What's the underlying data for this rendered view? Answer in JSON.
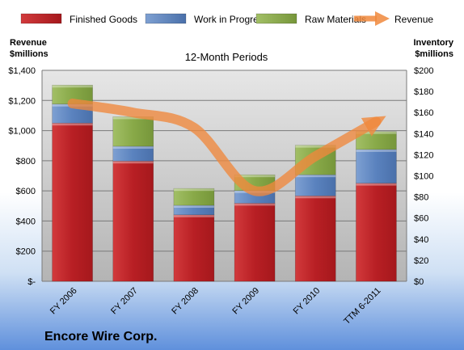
{
  "chart_data": {
    "type": "bar",
    "title": "12-Month Periods",
    "company": "Encore Wire Corp.",
    "categories": [
      "FY 2006",
      "FY 2007",
      "FY 2008",
      "FY 2009",
      "FY 2010",
      "TTM 6-2011"
    ],
    "stacked": true,
    "series": [
      {
        "name": "Finished Goods",
        "color": "#c0282c",
        "axis": "right",
        "values": [
          150,
          114,
          63,
          74,
          81,
          93
        ]
      },
      {
        "name": "Work in Progress",
        "color": "#5c84c0",
        "axis": "right",
        "values": [
          18,
          14,
          9,
          12,
          20,
          32
        ]
      },
      {
        "name": "Raw Materials",
        "color": "#8cae4c",
        "axis": "right",
        "values": [
          18,
          28,
          16,
          15,
          28,
          17
        ]
      },
      {
        "name": "Revenue",
        "type": "line",
        "color": "#f0883c",
        "axis": "left",
        "values": [
          1180,
          1120,
          1020,
          600,
          830,
          1060
        ]
      }
    ],
    "left_axis": {
      "label_line1": "Revenue",
      "label_line2": "$millions",
      "ylim": [
        0,
        1400
      ],
      "ticks": [
        "$-",
        "$200",
        "$400",
        "$600",
        "$800",
        "$1,000",
        "$1,200",
        "$1,400"
      ]
    },
    "right_axis": {
      "label_line1": "Inventory",
      "label_line2": "$millions",
      "ylim": [
        0,
        200
      ],
      "ticks": [
        "$0",
        "$20",
        "$40",
        "$60",
        "$80",
        "$100",
        "$120",
        "$140",
        "$160",
        "$180",
        "$200"
      ]
    },
    "grid": true,
    "legend_position": "top"
  }
}
